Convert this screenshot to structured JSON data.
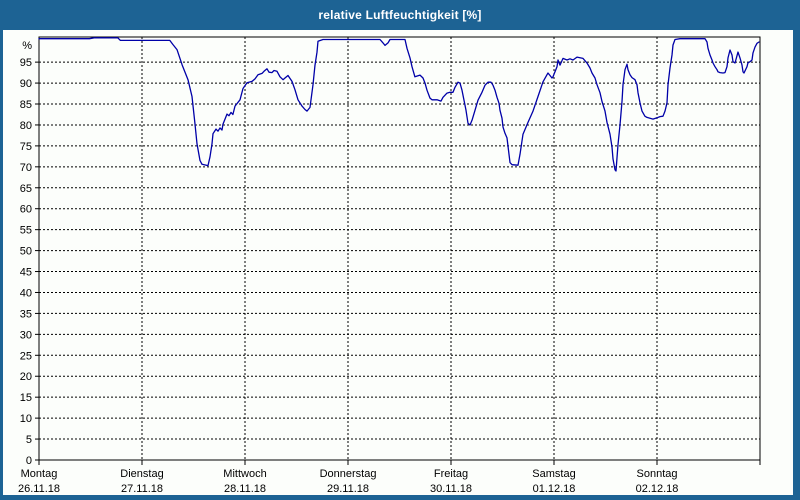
{
  "window": {
    "title": "relative Luftfeuchtigkeit [%]"
  },
  "colors": {
    "titlebar": "#1D6394",
    "frame": "#1D6394",
    "background": "#FCFEFB",
    "plot_border": "#000000",
    "gridline": "#000000",
    "line": "#0000A8",
    "title_text": "#FFFFFF",
    "label_text": "#000000"
  },
  "chart_data": {
    "type": "line",
    "title": "relative Luftfeuchtigkeit [%]",
    "y_unit_label": "%",
    "ylim": [
      0,
      101
    ],
    "yticks": [
      0,
      5,
      10,
      15,
      20,
      25,
      30,
      35,
      40,
      45,
      50,
      55,
      60,
      65,
      70,
      75,
      80,
      85,
      90,
      95
    ],
    "grid": "dashed",
    "legend": "none",
    "x_categories": [
      {
        "name": "Montag",
        "date": "26.11.18"
      },
      {
        "name": "Dienstag",
        "date": "27.11.18"
      },
      {
        "name": "Mittwoch",
        "date": "28.11.18"
      },
      {
        "name": "Donnerstag",
        "date": "29.11.18"
      },
      {
        "name": "Freitag",
        "date": "30.11.18"
      },
      {
        "name": "Samstag",
        "date": "01.12.18"
      },
      {
        "name": "Sonntag",
        "date": "02.12.18"
      }
    ],
    "x_unit": "days_since_monday_26_11_18",
    "series": [
      {
        "name": "relative Luftfeuchtigkeit",
        "color": "#0000A8",
        "points": [
          [
            0,
            100.6
          ],
          [
            0.49,
            100.6
          ],
          [
            0.535,
            100.8
          ],
          [
            0.765,
            100.8
          ],
          [
            0.79,
            100.2
          ],
          [
            1.27,
            100.2
          ],
          [
            1.3,
            99.2
          ],
          [
            1.34,
            98
          ],
          [
            1.39,
            94.3
          ],
          [
            1.447,
            90.8
          ],
          [
            1.485,
            86.8
          ],
          [
            1.515,
            80.2
          ],
          [
            1.534,
            75.5
          ],
          [
            1.563,
            71.5
          ],
          [
            1.583,
            70.6
          ],
          [
            1.641,
            70.3
          ],
          [
            1.66,
            72.4
          ],
          [
            1.68,
            75.5
          ],
          [
            1.689,
            77.9
          ],
          [
            1.718,
            79
          ],
          [
            1.738,
            78.5
          ],
          [
            1.757,
            79.3
          ],
          [
            1.777,
            78.8
          ],
          [
            1.786,
            80.2
          ],
          [
            1.825,
            82.6
          ],
          [
            1.845,
            82.2
          ],
          [
            1.864,
            83
          ],
          [
            1.883,
            82.5
          ],
          [
            1.903,
            84.5
          ],
          [
            1.951,
            86
          ],
          [
            1.981,
            88.7
          ],
          [
            2.019,
            90.1
          ],
          [
            2.068,
            90.4
          ],
          [
            2.097,
            91
          ],
          [
            2.126,
            92
          ],
          [
            2.165,
            92.3
          ],
          [
            2.184,
            92.8
          ],
          [
            2.214,
            93.4
          ],
          [
            2.233,
            92.6
          ],
          [
            2.262,
            92.5
          ],
          [
            2.282,
            93
          ],
          [
            2.311,
            92.8
          ],
          [
            2.34,
            91.5
          ],
          [
            2.369,
            90.8
          ],
          [
            2.388,
            91.2
          ],
          [
            2.417,
            91.8
          ],
          [
            2.456,
            90.4
          ],
          [
            2.485,
            88.4
          ],
          [
            2.515,
            86
          ],
          [
            2.553,
            84.5
          ],
          [
            2.583,
            83.7
          ],
          [
            2.602,
            83.3
          ],
          [
            2.631,
            84.2
          ],
          [
            2.66,
            89.6
          ],
          [
            2.68,
            94.3
          ],
          [
            2.699,
            97.4
          ],
          [
            2.709,
            100
          ],
          [
            2.757,
            100.4
          ],
          [
            3.311,
            100.4
          ],
          [
            3.34,
            99.6
          ],
          [
            3.359,
            99
          ],
          [
            3.388,
            99.6
          ],
          [
            3.408,
            100.4
          ],
          [
            3.553,
            100.4
          ],
          [
            3.573,
            98.3
          ],
          [
            3.602,
            96
          ],
          [
            3.621,
            93.9
          ],
          [
            3.65,
            91.5
          ],
          [
            3.699,
            91.9
          ],
          [
            3.728,
            91.2
          ],
          [
            3.748,
            90
          ],
          [
            3.767,
            88.3
          ],
          [
            3.796,
            86.4
          ],
          [
            3.816,
            86
          ],
          [
            3.864,
            86
          ],
          [
            3.903,
            85.7
          ],
          [
            3.922,
            86.6
          ],
          [
            3.961,
            87.6
          ],
          [
            3.99,
            87.8
          ],
          [
            4.019,
            87.8
          ],
          [
            4.039,
            89
          ],
          [
            4.068,
            90.2
          ],
          [
            4.087,
            90
          ],
          [
            4.107,
            88.3
          ],
          [
            4.126,
            85.9
          ],
          [
            4.146,
            83.5
          ],
          [
            4.165,
            80.4
          ],
          [
            4.184,
            80
          ],
          [
            4.204,
            81.1
          ],
          [
            4.233,
            83.5
          ],
          [
            4.262,
            85.9
          ],
          [
            4.301,
            87.8
          ],
          [
            4.33,
            89.5
          ],
          [
            4.359,
            90.2
          ],
          [
            4.388,
            90.2
          ],
          [
            4.408,
            89.5
          ],
          [
            4.427,
            88.3
          ],
          [
            4.447,
            86.6
          ],
          [
            4.466,
            85.2
          ],
          [
            4.476,
            83.5
          ],
          [
            4.495,
            81.6
          ],
          [
            4.505,
            79.5
          ],
          [
            4.524,
            78
          ],
          [
            4.544,
            76.9
          ],
          [
            4.563,
            73
          ],
          [
            4.573,
            71
          ],
          [
            4.592,
            70.5
          ],
          [
            4.65,
            70.4
          ],
          [
            4.67,
            73
          ],
          [
            4.699,
            77.8
          ],
          [
            4.748,
            80.6
          ],
          [
            4.796,
            83.3
          ],
          [
            4.845,
            86.8
          ],
          [
            4.893,
            90.3
          ],
          [
            4.932,
            92
          ],
          [
            4.942,
            92.4
          ],
          [
            4.981,
            91.2
          ],
          [
            4.99,
            91.5
          ],
          [
            5.029,
            93.9
          ],
          [
            5.039,
            95.5
          ],
          [
            5.058,
            94.3
          ],
          [
            5.087,
            95.9
          ],
          [
            5.126,
            95.5
          ],
          [
            5.155,
            95.8
          ],
          [
            5.184,
            95.5
          ],
          [
            5.223,
            96.2
          ],
          [
            5.282,
            95.9
          ],
          [
            5.32,
            94.8
          ],
          [
            5.35,
            93.6
          ],
          [
            5.369,
            92.4
          ],
          [
            5.398,
            91.2
          ],
          [
            5.417,
            89.6
          ],
          [
            5.447,
            87.7
          ],
          [
            5.466,
            85.6
          ],
          [
            5.495,
            83.3
          ],
          [
            5.515,
            80.6
          ],
          [
            5.544,
            77.8
          ],
          [
            5.563,
            74.7
          ],
          [
            5.573,
            71.9
          ],
          [
            5.592,
            69.3
          ],
          [
            5.602,
            69
          ],
          [
            5.621,
            75.3
          ],
          [
            5.641,
            80
          ],
          [
            5.66,
            85.6
          ],
          [
            5.67,
            89.6
          ],
          [
            5.689,
            93.2
          ],
          [
            5.709,
            94.5
          ],
          [
            5.718,
            93.2
          ],
          [
            5.738,
            92
          ],
          [
            5.757,
            91.3
          ],
          [
            5.786,
            90.8
          ],
          [
            5.806,
            89.6
          ],
          [
            5.816,
            87.7
          ],
          [
            5.835,
            85.3
          ],
          [
            5.854,
            83.3
          ],
          [
            5.883,
            82.1
          ],
          [
            5.903,
            81.8
          ],
          [
            5.961,
            81.4
          ],
          [
            6,
            81.7
          ],
          [
            6.029,
            82
          ],
          [
            6.058,
            82.1
          ],
          [
            6.078,
            83.3
          ],
          [
            6.097,
            85.3
          ],
          [
            6.107,
            89.6
          ],
          [
            6.126,
            93.6
          ],
          [
            6.146,
            96.7
          ],
          [
            6.155,
            99.1
          ],
          [
            6.175,
            100.4
          ],
          [
            6.223,
            100.6
          ],
          [
            6.466,
            100.6
          ],
          [
            6.485,
            99.8
          ],
          [
            6.495,
            98.3
          ],
          [
            6.515,
            96.7
          ],
          [
            6.534,
            95.5
          ],
          [
            6.544,
            94.8
          ],
          [
            6.563,
            93.9
          ],
          [
            6.583,
            93.2
          ],
          [
            6.592,
            92.7
          ],
          [
            6.612,
            92.5
          ],
          [
            6.641,
            92.4
          ],
          [
            6.66,
            92.5
          ],
          [
            6.68,
            93.9
          ],
          [
            6.689,
            96
          ],
          [
            6.709,
            97.9
          ],
          [
            6.728,
            96.7
          ],
          [
            6.738,
            95.1
          ],
          [
            6.757,
            94.8
          ],
          [
            6.786,
            97.4
          ],
          [
            6.806,
            96
          ],
          [
            6.825,
            94.3
          ],
          [
            6.835,
            92.7
          ],
          [
            6.845,
            92.4
          ],
          [
            6.874,
            93.9
          ],
          [
            6.883,
            94.8
          ],
          [
            6.903,
            95.1
          ],
          [
            6.922,
            95.5
          ],
          [
            6.932,
            97.2
          ],
          [
            6.951,
            98.6
          ],
          [
            6.971,
            99.5
          ],
          [
            6.99,
            99.8
          ]
        ]
      }
    ]
  }
}
